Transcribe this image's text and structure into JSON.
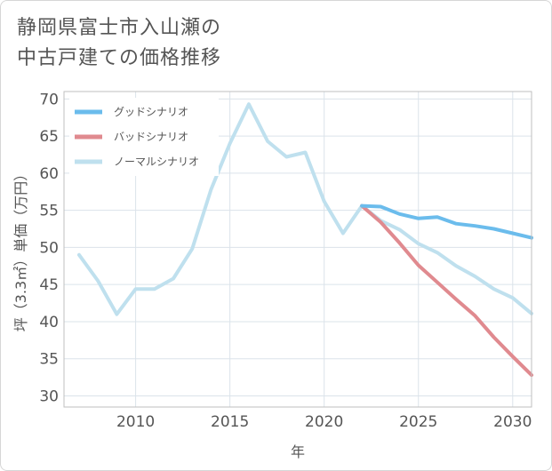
{
  "title_line1": "静岡県富士市入山瀬の",
  "title_line2": "中古戸建ての価格推移",
  "chart_data": {
    "type": "line",
    "xlabel": "年",
    "ylabel": "坪（3.3㎡）単価（万円）",
    "xlim": [
      2006.2,
      2031
    ],
    "ylim": [
      28.5,
      71
    ],
    "xticks": [
      2010,
      2015,
      2020,
      2025,
      2030
    ],
    "yticks": [
      30,
      35,
      40,
      45,
      50,
      55,
      60,
      65,
      70
    ],
    "grid": true,
    "legend_position": "top-left",
    "series": [
      {
        "name": "グッドシナリオ",
        "color": "#6bbcec",
        "x": [
          2022,
          2023,
          2024,
          2025,
          2026,
          2027,
          2028,
          2029,
          2030,
          2031
        ],
        "y": [
          55.6,
          55.5,
          54.5,
          53.9,
          54.1,
          53.2,
          52.9,
          52.5,
          51.9,
          51.3
        ]
      },
      {
        "name": "バッドシナリオ",
        "color": "#e08a8f",
        "x": [
          2022,
          2023,
          2024,
          2025,
          2026,
          2027,
          2028,
          2029,
          2030,
          2031
        ],
        "y": [
          55.6,
          53.4,
          50.6,
          47.6,
          45.3,
          43.0,
          40.8,
          37.9,
          35.3,
          32.8
        ]
      },
      {
        "name": "ノーマルシナリオ",
        "color": "#bfe0ee",
        "x": [
          2007,
          2008,
          2009,
          2010,
          2011,
          2012,
          2013,
          2014,
          2015,
          2016,
          2017,
          2018,
          2019,
          2020,
          2021,
          2022,
          2023,
          2024,
          2025,
          2026,
          2027,
          2028,
          2029,
          2030,
          2031
        ],
        "y": [
          49.0,
          45.5,
          41.0,
          44.4,
          44.4,
          45.8,
          49.8,
          57.8,
          64.0,
          69.3,
          64.3,
          62.2,
          62.8,
          56.2,
          51.9,
          55.6,
          53.6,
          52.4,
          50.5,
          49.3,
          47.5,
          46.1,
          44.4,
          43.2,
          41.1
        ]
      }
    ]
  }
}
